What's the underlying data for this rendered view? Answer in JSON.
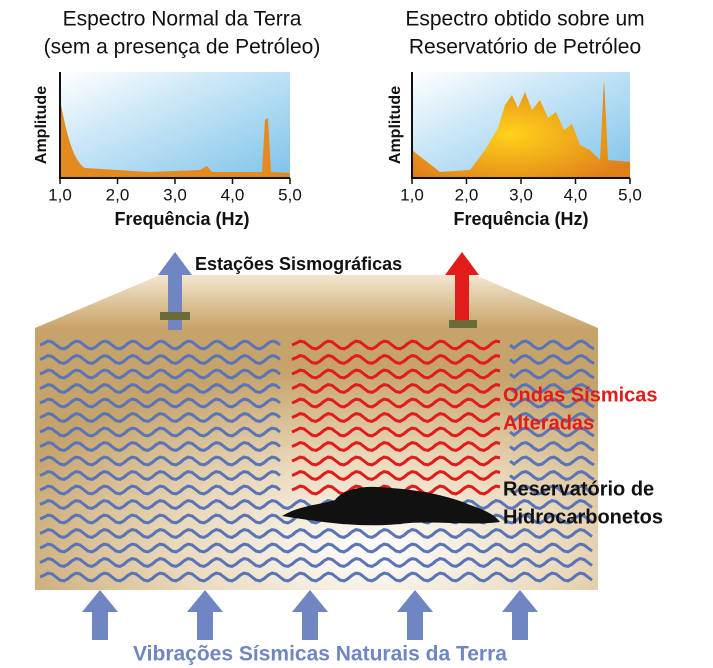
{
  "spectra": [
    {
      "title": [
        "Espectro Normal da Terra",
        "(sem a presença de Petróleo)"
      ],
      "y_label": "Amplitude",
      "x_label": "Frequência (Hz)",
      "xlim": [
        1,
        5
      ],
      "xticks": [
        {
          "value": 1,
          "label": "1,0"
        },
        {
          "value": 2,
          "label": "2,0"
        },
        {
          "value": 3,
          "label": "3,0"
        },
        {
          "value": 4,
          "label": "4,0"
        },
        {
          "value": 5,
          "label": "5,0"
        }
      ]
    },
    {
      "title": [
        "Espectro obtido sobre um",
        "Reservatório de Petróleo"
      ],
      "y_label": "Amplitude",
      "x_label": "Frequência (Hz)",
      "xlim": [
        1,
        5
      ],
      "xticks": [
        {
          "value": 1,
          "label": "1,0"
        },
        {
          "value": 2,
          "label": "2,0"
        },
        {
          "value": 3,
          "label": "3,0"
        },
        {
          "value": 4,
          "label": "4,0"
        },
        {
          "value": 5,
          "label": "5,0"
        }
      ]
    }
  ],
  "labels": {
    "stations": "Estações Sismográficas",
    "altered_waves": [
      "Ondas Sísmicas",
      "Alteradas"
    ],
    "reservoir": [
      "Reservatório de",
      "Hidrocarbonetos"
    ],
    "natural": "Vibrações Sísmicas Naturais da Terra"
  }
}
